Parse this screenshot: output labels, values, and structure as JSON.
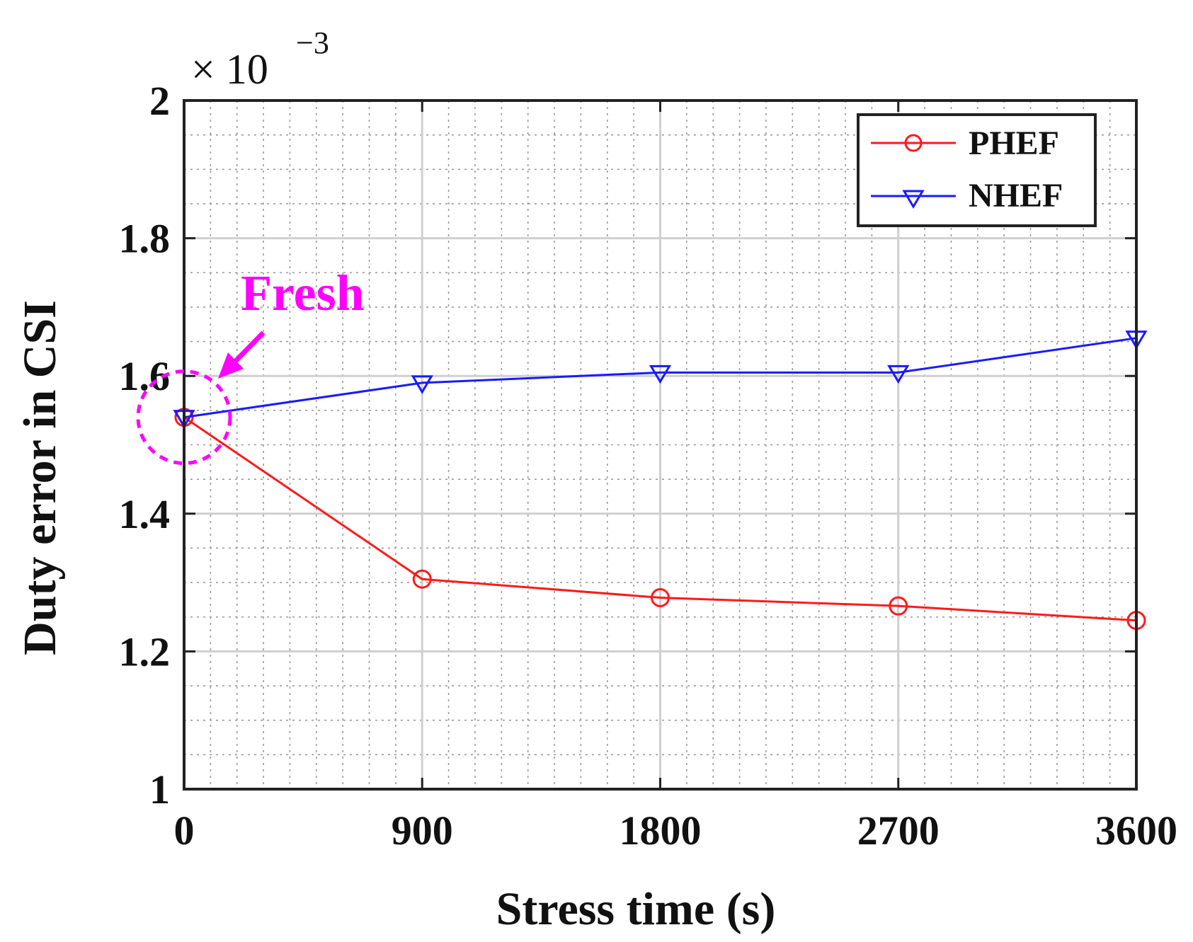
{
  "chart_data": {
    "type": "line",
    "title": "",
    "xlabel": "Stress time (s)",
    "ylabel": "Duty error in CSI",
    "y_multiplier": {
      "base": "× 10",
      "exponent": "−3"
    },
    "x": [
      0,
      900,
      1800,
      2700,
      3600
    ],
    "x_tick_labels": [
      "0",
      "900",
      "1800",
      "2700",
      "3600"
    ],
    "xlim": [
      0,
      3600
    ],
    "ylim": [
      1.0,
      2.0
    ],
    "y_ticks": [
      1,
      1.2,
      1.4,
      1.6,
      1.8,
      2
    ],
    "y_tick_labels": [
      "1",
      "1.2",
      "1.4",
      "1.6",
      "1.8",
      "2"
    ],
    "grid": true,
    "minor_grid": true,
    "legend_position": "top-right",
    "series": [
      {
        "name": "PHEF",
        "color": "#ff1a1a",
        "marker": "circle",
        "values": [
          1.54,
          1.305,
          1.278,
          1.266,
          1.245
        ]
      },
      {
        "name": "NHEF",
        "color": "#1a1aff",
        "marker": "triangle-down",
        "values": [
          1.54,
          1.59,
          1.605,
          1.605,
          1.655
        ]
      }
    ],
    "annotations": [
      {
        "text": "Fresh",
        "color": "#ff00ff",
        "target_x": 0,
        "target_y": 1.54
      }
    ]
  }
}
